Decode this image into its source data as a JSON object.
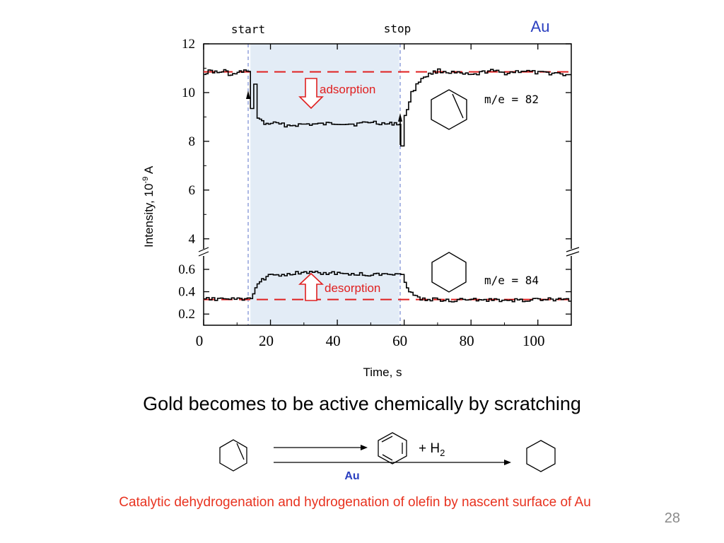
{
  "slide": {
    "metal_label": "Au",
    "subtitle": "Gold becomes to be active chemically by scratching",
    "caption": "Catalytic dehydrogenation and hydrogenation of olefin by nascent surface of Au",
    "page_number": "28",
    "reaction": {
      "product_text": "+  H",
      "product_subscript": "2",
      "catalyst": "Au"
    }
  },
  "chart_data": {
    "type": "line",
    "xlabel": "Time, s",
    "ylabel": "Intensity, 10",
    "ylabel_exponent": "-9",
    "ylabel_unit": " A",
    "xlim": [
      0,
      110
    ],
    "x_ticks": [
      "0",
      "20",
      "40",
      "60",
      "80",
      "100"
    ],
    "upper_axis": {
      "ylim": [
        3.5,
        12
      ],
      "ticks": [
        "12",
        "10",
        "8",
        "6",
        "4"
      ]
    },
    "lower_axis": {
      "ylim": [
        0.1,
        0.72
      ],
      "ticks": [
        "0.6",
        "0.4",
        "0.2"
      ]
    },
    "markers": [
      {
        "label": "start",
        "x": 14
      },
      {
        "label": "stop",
        "x": 58.5
      }
    ],
    "annotations": {
      "adsorption": "adsorption",
      "desorption": "desorption"
    },
    "series": [
      {
        "name": "m/e = 82",
        "color": "#000000",
        "points": [
          [
            0,
            10.8
          ],
          [
            2,
            10.9
          ],
          [
            4,
            10.8
          ],
          [
            6,
            10.9
          ],
          [
            8,
            10.7
          ],
          [
            10,
            10.8
          ],
          [
            12,
            10.9
          ],
          [
            13.5,
            10.8
          ],
          [
            14,
            9.4
          ],
          [
            15,
            10.3
          ],
          [
            16,
            9.0
          ],
          [
            18,
            8.7
          ],
          [
            20,
            8.75
          ],
          [
            25,
            8.65
          ],
          [
            30,
            8.7
          ],
          [
            35,
            8.7
          ],
          [
            40,
            8.75
          ],
          [
            45,
            8.7
          ],
          [
            50,
            8.8
          ],
          [
            55,
            8.7
          ],
          [
            57,
            8.75
          ],
          [
            58.5,
            8.7
          ],
          [
            59,
            7.8
          ],
          [
            60,
            9.0
          ],
          [
            62,
            10.0
          ],
          [
            65,
            10.6
          ],
          [
            68,
            10.8
          ],
          [
            70,
            10.9
          ],
          [
            75,
            10.8
          ],
          [
            80,
            10.7
          ],
          [
            85,
            10.9
          ],
          [
            90,
            10.8
          ],
          [
            95,
            10.9
          ],
          [
            100,
            10.8
          ],
          [
            105,
            10.8
          ],
          [
            110,
            10.7
          ]
        ]
      },
      {
        "name": "m/e = 84",
        "color": "#000000",
        "points": [
          [
            0,
            0.33
          ],
          [
            5,
            0.34
          ],
          [
            10,
            0.33
          ],
          [
            13,
            0.33
          ],
          [
            14,
            0.34
          ],
          [
            16,
            0.47
          ],
          [
            18,
            0.52
          ],
          [
            20,
            0.55
          ],
          [
            25,
            0.56
          ],
          [
            30,
            0.57
          ],
          [
            35,
            0.57
          ],
          [
            40,
            0.56
          ],
          [
            45,
            0.56
          ],
          [
            50,
            0.55
          ],
          [
            55,
            0.56
          ],
          [
            58,
            0.57
          ],
          [
            59,
            0.55
          ],
          [
            60,
            0.48
          ],
          [
            62,
            0.38
          ],
          [
            64,
            0.34
          ],
          [
            70,
            0.33
          ],
          [
            75,
            0.32
          ],
          [
            80,
            0.33
          ],
          [
            90,
            0.32
          ],
          [
            100,
            0.33
          ],
          [
            110,
            0.33
          ]
        ]
      }
    ],
    "reference_lines": [
      {
        "axis": "upper",
        "y": 10.85,
        "color": "#e02020"
      },
      {
        "axis": "lower",
        "y": 0.33,
        "color": "#e02020"
      }
    ],
    "shaded_region": {
      "x": [
        14,
        58.5
      ],
      "color": "#e3ecf6"
    }
  }
}
